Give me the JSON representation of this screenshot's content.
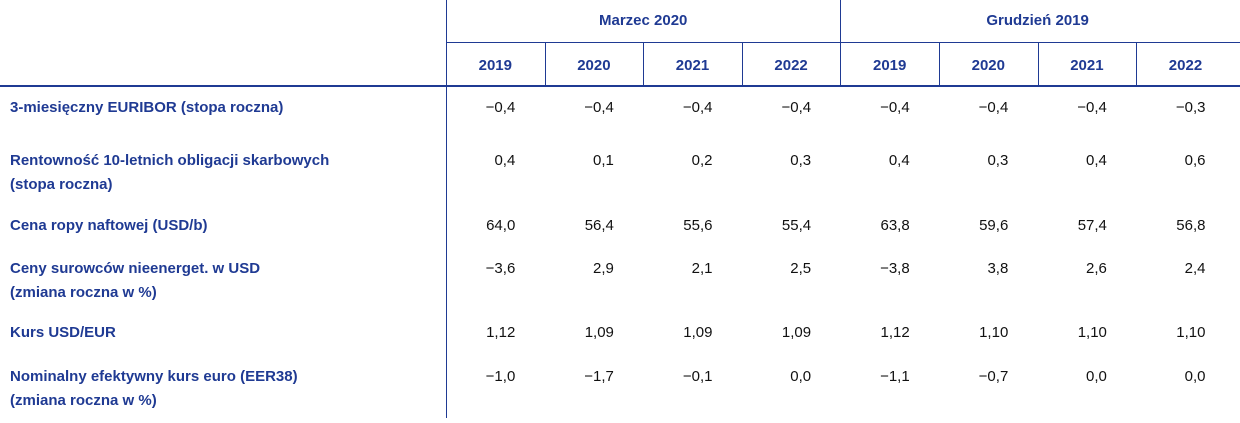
{
  "table": {
    "groups": [
      "Marzec 2020",
      "Grudzień 2019"
    ],
    "years": [
      "2019",
      "2020",
      "2021",
      "2022",
      "2019",
      "2020",
      "2021",
      "2022"
    ],
    "rows": [
      {
        "label": [
          "3-miesięczny EURIBOR (stopa roczna)"
        ],
        "values": [
          "−0,4",
          "−0,4",
          "−0,4",
          "−0,4",
          "−0,4",
          "−0,4",
          "−0,4",
          "−0,3"
        ]
      },
      {
        "label": [
          "Rentowność 10-letnich obligacji skarbowych",
          "(stopa roczna)"
        ],
        "values": [
          "0,4",
          "0,1",
          "0,2",
          "0,3",
          "0,4",
          "0,3",
          "0,4",
          "0,6"
        ]
      },
      {
        "label": [
          "Cena ropy naftowej (USD/b)"
        ],
        "values": [
          "64,0",
          "56,4",
          "55,6",
          "55,4",
          "63,8",
          "59,6",
          "57,4",
          "56,8"
        ]
      },
      {
        "label": [
          "Ceny surowców nieenerget. w USD",
          "(zmiana roczna w %)"
        ],
        "values": [
          "−3,6",
          "2,9",
          "2,1",
          "2,5",
          "−3,8",
          "3,8",
          "2,6",
          "2,4"
        ]
      },
      {
        "label": [
          "Kurs USD/EUR"
        ],
        "values": [
          "1,12",
          "1,09",
          "1,09",
          "1,09",
          "1,12",
          "1,10",
          "1,10",
          "1,10"
        ]
      },
      {
        "label": [
          "Nominalny efektywny kurs euro (EER38)",
          "(zmiana roczna w %)"
        ],
        "values": [
          "−1,0",
          "−1,7",
          "−0,1",
          "0,0",
          "−1,1",
          "−0,7",
          "0,0",
          "0,0"
        ]
      }
    ]
  }
}
